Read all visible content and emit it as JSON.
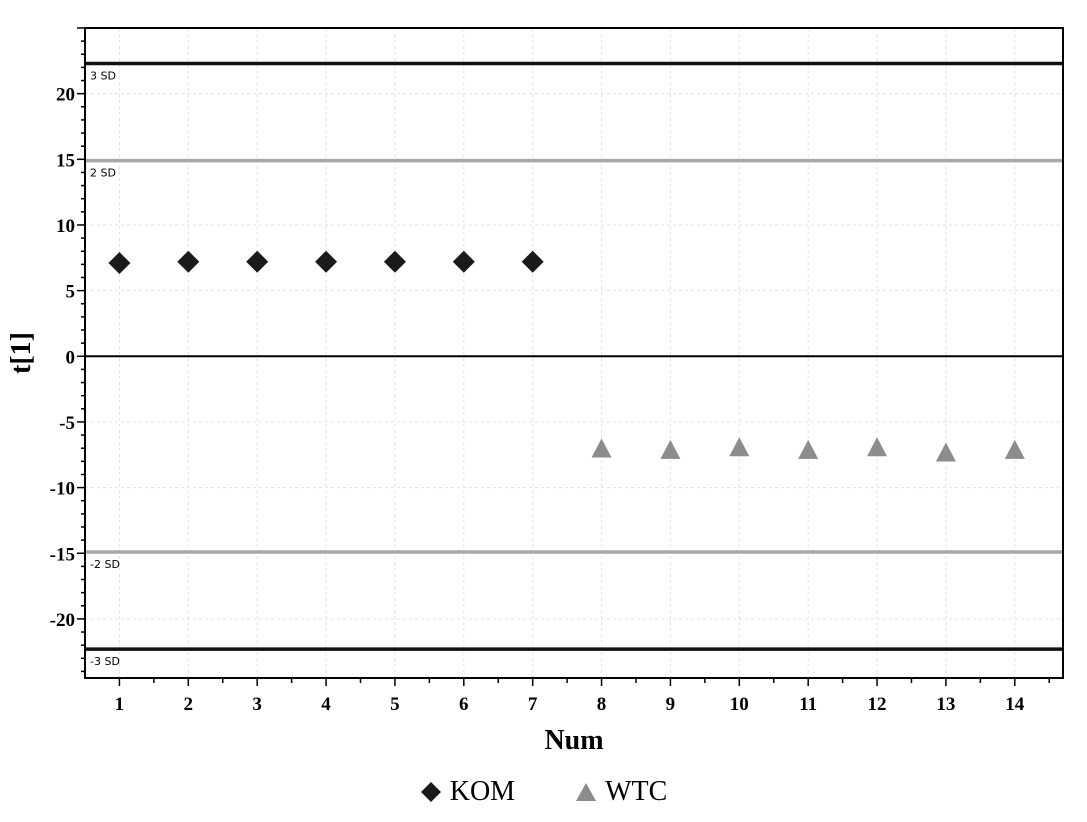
{
  "chart_data": {
    "type": "scatter",
    "xlabel": "Num",
    "ylabel": "t[1]",
    "xlim": [
      0.5,
      14.7
    ],
    "ylim": [
      -24.5,
      25
    ],
    "x_ticks": [
      1,
      2,
      3,
      4,
      5,
      6,
      7,
      8,
      9,
      10,
      11,
      12,
      13,
      14
    ],
    "y_ticks": [
      20,
      15,
      10,
      5,
      0,
      -5,
      -10,
      -15,
      -20
    ],
    "grid": true,
    "legend_position": "bottom-center",
    "reference_lines": [
      {
        "label": "3 SD",
        "value": 22.3,
        "color": "#111111"
      },
      {
        "label": "2 SD",
        "value": 14.9,
        "color": "#a8a8a8"
      },
      {
        "label": "",
        "value": 0,
        "color": "#000000"
      },
      {
        "label": "-2 SD",
        "value": -14.9,
        "color": "#a8a8a8"
      },
      {
        "label": "-3 SD",
        "value": -22.3,
        "color": "#111111"
      }
    ],
    "series": [
      {
        "name": "KOM",
        "marker": "diamond",
        "color": "#1a1a1a",
        "x": [
          1,
          2,
          3,
          4,
          5,
          6,
          7
        ],
        "y": [
          7.1,
          7.2,
          7.2,
          7.2,
          7.2,
          7.2,
          7.2
        ]
      },
      {
        "name": "WTC",
        "marker": "triangle",
        "color": "#8c8c8c",
        "x": [
          8,
          9,
          10,
          11,
          12,
          13,
          14
        ],
        "y": [
          -7.1,
          -7.2,
          -7.0,
          -7.2,
          -7.0,
          -7.4,
          -7.2
        ]
      }
    ]
  }
}
